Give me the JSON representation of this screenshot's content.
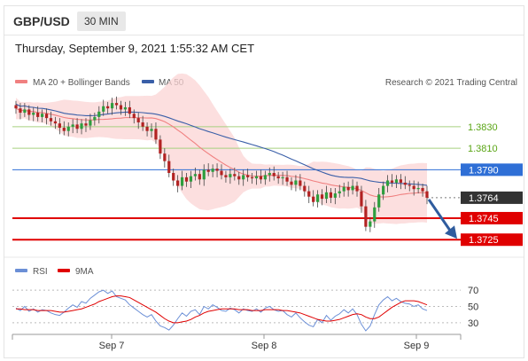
{
  "header": {
    "pair": "GBP/USD",
    "timeframe": "30 MIN",
    "datetime": "Thursday, September 9, 2021 1:55:32 AM CET"
  },
  "legend": {
    "ma20_label": "MA 20 + Bollinger Bands",
    "ma50_label": "MA 50",
    "credit": "Research © 2021 Trading Central",
    "ma20_color": "#f08080",
    "ma50_color": "#3a5fa8"
  },
  "rsi_legend": {
    "rsi_label": "RSI",
    "ma_label": "9MA",
    "rsi_color": "#6b8fd6",
    "ma_color": "#e00000"
  },
  "chart_data": [
    {
      "type": "candlestick",
      "title": "GBP/USD 30 MIN",
      "xlabel": "",
      "ylabel": "",
      "ylim": [
        1.3712,
        1.3862
      ],
      "x_ticks": [
        "Sep 7",
        "Sep 8",
        "Sep 9"
      ],
      "levels": [
        {
          "value": 1.383,
          "label": "1.3830",
          "style": "green-line"
        },
        {
          "value": 1.381,
          "label": "1.3810",
          "style": "green-line"
        },
        {
          "value": 1.379,
          "label": "1.3790",
          "style": "blue-tag"
        },
        {
          "value": 1.3764,
          "label": "1.3764",
          "style": "current-price"
        },
        {
          "value": 1.3745,
          "label": "1.3745",
          "style": "red-tag"
        },
        {
          "value": 1.3725,
          "label": "1.3725",
          "style": "red-tag"
        }
      ],
      "forecast_arrow": {
        "from": 1.3764,
        "to": 1.3725,
        "direction": "down"
      },
      "close_series": [
        1.3847,
        1.3843,
        1.3846,
        1.3841,
        1.3843,
        1.3839,
        1.3842,
        1.3838,
        1.3835,
        1.3833,
        1.3829,
        1.3826,
        1.383,
        1.3832,
        1.3828,
        1.3833,
        1.3831,
        1.3836,
        1.3839,
        1.3844,
        1.3849,
        1.3847,
        1.3852,
        1.385,
        1.3846,
        1.3848,
        1.3842,
        1.3838,
        1.3834,
        1.383,
        1.3826,
        1.3828,
        1.3818,
        1.3805,
        1.3798,
        1.3787,
        1.378,
        1.3775,
        1.3783,
        1.3779,
        1.3784,
        1.3786,
        1.3781,
        1.379,
        1.3788,
        1.3791,
        1.3789,
        1.3785,
        1.3783,
        1.3786,
        1.3784,
        1.3781,
        1.3785,
        1.3783,
        1.3782,
        1.3784,
        1.3781,
        1.3785,
        1.3787,
        1.3784,
        1.3782,
        1.3783,
        1.3779,
        1.3776,
        1.378,
        1.3775,
        1.377,
        1.3765,
        1.376,
        1.3767,
        1.3763,
        1.3769,
        1.3764,
        1.3768,
        1.377,
        1.3774,
        1.3771,
        1.3775,
        1.377,
        1.3756,
        1.3737,
        1.3742,
        1.3755,
        1.3767,
        1.3775,
        1.378,
        1.3778,
        1.3781,
        1.3778,
        1.3776,
        1.3775,
        1.3772,
        1.3773,
        1.377,
        1.3764
      ]
    },
    {
      "type": "line",
      "title": "RSI",
      "ylim": [
        20,
        80
      ],
      "y_ticks": [
        70,
        50,
        30
      ],
      "series": [
        {
          "name": "RSI",
          "values": [
            48,
            45,
            50,
            44,
            47,
            43,
            46,
            45,
            42,
            40,
            39,
            43,
            48,
            52,
            49,
            56,
            54,
            60,
            64,
            68,
            70,
            66,
            69,
            62,
            60,
            58,
            52,
            48,
            44,
            40,
            37,
            40,
            32,
            26,
            24,
            21,
            27,
            35,
            42,
            38,
            44,
            46,
            40,
            50,
            47,
            52,
            49,
            45,
            44,
            48,
            46,
            42,
            47,
            45,
            44,
            47,
            43,
            48,
            50,
            46,
            44,
            45,
            40,
            37,
            42,
            36,
            31,
            27,
            25,
            34,
            30,
            39,
            33,
            38,
            41,
            46,
            42,
            47,
            40,
            28,
            20,
            26,
            40,
            52,
            58,
            62,
            57,
            60,
            56,
            54,
            53,
            50,
            52,
            47,
            45
          ]
        },
        {
          "name": "9MA",
          "values": [
            47,
            47,
            46,
            46,
            46,
            45,
            45,
            45,
            45,
            44,
            43,
            43,
            44,
            45,
            46,
            47,
            49,
            51,
            53,
            56,
            58,
            60,
            62,
            63,
            63,
            62,
            61,
            58,
            55,
            52,
            49,
            46,
            43,
            39,
            35,
            32,
            30,
            30,
            31,
            32,
            34,
            37,
            39,
            42,
            44,
            45,
            46,
            47,
            47,
            47,
            47,
            46,
            46,
            46,
            45,
            45,
            45,
            46,
            46,
            46,
            46,
            45,
            45,
            44,
            43,
            42,
            40,
            38,
            36,
            34,
            33,
            32,
            32,
            33,
            34,
            36,
            38,
            40,
            41,
            40,
            37,
            35,
            35,
            37,
            41,
            45,
            49,
            52,
            55,
            57,
            57,
            57,
            56,
            54,
            52
          ]
        }
      ]
    }
  ]
}
